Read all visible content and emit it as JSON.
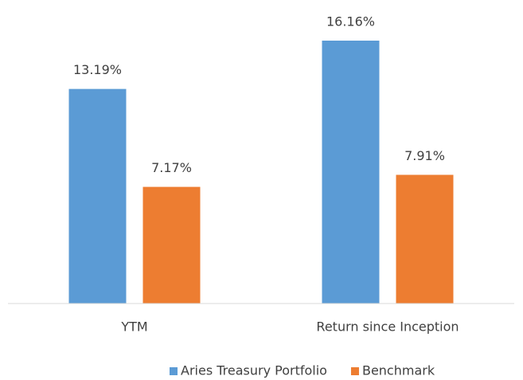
{
  "chart_data": {
    "type": "bar",
    "categories": [
      "YTM",
      "Return since Inception"
    ],
    "series": [
      {
        "name": "Aries Treasury Portfolio",
        "color": "#5b9bd5",
        "values": [
          13.19,
          16.16
        ],
        "value_labels": [
          "13.19%",
          "16.16%"
        ]
      },
      {
        "name": "Benchmark",
        "color": "#ed7d31",
        "values": [
          7.17,
          7.91
        ],
        "value_labels": [
          "7.17%",
          "7.91%"
        ]
      }
    ],
    "legend": "bottom"
  }
}
